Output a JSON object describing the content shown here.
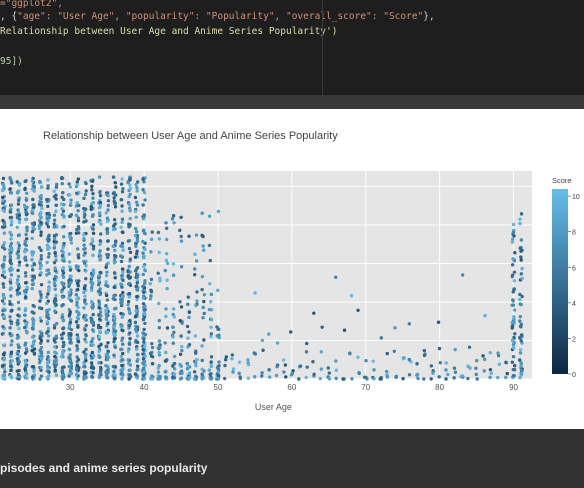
{
  "code": {
    "line1_str": "=\"ggplot2\",",
    "line2_pre": ", {",
    "line2_body": "\"age\": \"User Age\", \"popularity\": \"Popularity\", \"overall_score\": \"Score\"",
    "line2_post": "},",
    "line3_str": "Relationship between User Age and Anime Series Popularity')",
    "line4_str": "95])"
  },
  "chart_data": {
    "type": "scatter",
    "title": "Relationship between User Age and Anime Series Popularity",
    "xlabel": "User Age",
    "ylabel": "",
    "x_ticks": [
      30,
      40,
      50,
      60,
      70,
      80,
      90
    ],
    "xlim": [
      20.5,
      92.5
    ],
    "colorbar": {
      "title": "Score",
      "ticks": [
        0,
        2,
        4,
        6,
        8,
        10
      ],
      "range": [
        0,
        10.4
      ],
      "color_low": "#0d2742",
      "color_high": "#66bde9"
    },
    "grid": true,
    "legend": "none",
    "point_density_by_age": [
      {
        "age_range": [
          20,
          40
        ],
        "points_per_age": 80,
        "popularity_max": 10.5
      },
      {
        "age_range": [
          40,
          50
        ],
        "points_per_age": 25,
        "popularity_max": 8.7
      },
      {
        "age_range": [
          50,
          90
        ],
        "points_per_age": 4,
        "popularity_max": 6.1
      },
      {
        "age_range": [
          90,
          91
        ],
        "points_per_age": 50,
        "popularity_max": 8.6
      }
    ]
  },
  "markdown": {
    "heading": "pisodes and anime series popularity"
  }
}
